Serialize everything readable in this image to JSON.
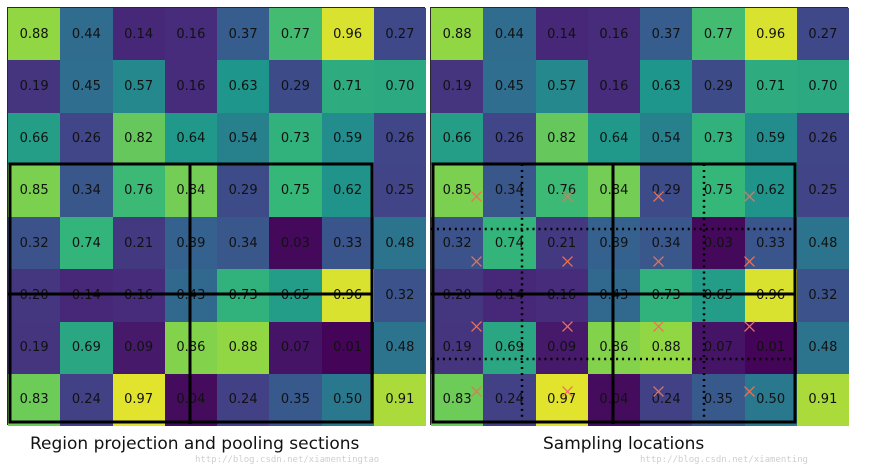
{
  "matrix": [
    [
      "0.88",
      "0.44",
      "0.14",
      "0.16",
      "0.37",
      "0.77",
      "0.96",
      "0.27"
    ],
    [
      "0.19",
      "0.45",
      "0.57",
      "0.16",
      "0.63",
      "0.29",
      "0.71",
      "0.70"
    ],
    [
      "0.66",
      "0.26",
      "0.82",
      "0.64",
      "0.54",
      "0.73",
      "0.59",
      "0.26"
    ],
    [
      "0.85",
      "0.34",
      "0.76",
      "0.84",
      "0.29",
      "0.75",
      "0.62",
      "0.25"
    ],
    [
      "0.32",
      "0.74",
      "0.21",
      "0.39",
      "0.34",
      "0.03",
      "0.33",
      "0.48"
    ],
    [
      "0.20",
      "0.14",
      "0.16",
      "0.43",
      "0.73",
      "0.65",
      "0.96",
      "0.32"
    ],
    [
      "0.19",
      "0.69",
      "0.09",
      "0.86",
      "0.88",
      "0.07",
      "0.01",
      "0.48"
    ],
    [
      "0.83",
      "0.24",
      "0.97",
      "0.04",
      "0.24",
      "0.35",
      "0.50",
      "0.91"
    ]
  ],
  "captions": {
    "left": "Region projection and pooling sections",
    "right": "Sampling locations"
  },
  "watermarks": {
    "left": "http://blog.csdn.net/xiamentingtao",
    "right": "http://blog.csdn.net/xiamenting"
  },
  "region": {
    "x0": 0,
    "y0": 3,
    "x1": 7,
    "y1": 8,
    "split_x": 3.5,
    "split_y": 5.5
  },
  "sample_lines": {
    "x": [
      1.75,
      5.25
    ],
    "y": [
      4.25,
      6.75
    ]
  },
  "sample_points_x": [
    0.875,
    2.625,
    4.375,
    6.125
  ],
  "sample_points_y": [
    3.625,
    4.875,
    6.125,
    7.375
  ],
  "colors": {
    "grid_line": "#000000",
    "sample_marker": "#e8735a"
  }
}
